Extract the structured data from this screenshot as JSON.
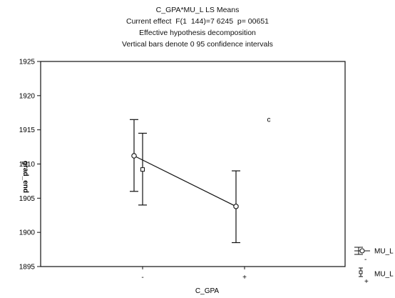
{
  "chart_data": {
    "type": "line",
    "title_lines": [
      "C_GPA*MU_L LS Means",
      "Current effect  F(1  144)=7 6245  p= 00651",
      "Effective hypothesis decomposition",
      "Vertical bars denote 0 95 confidence intervals"
    ],
    "xlabel": "C_GPA",
    "ylabel": "grad_end",
    "categories": [
      "-",
      "+"
    ],
    "ylim": [
      1895,
      1925
    ],
    "yticks": [
      1895,
      1900,
      1905,
      1910,
      1915,
      1920,
      1925
    ],
    "series": [
      {
        "name": "MU_L\n-",
        "marker": "circle",
        "values": [
          1911.2,
          1903.8
        ],
        "ci_low": [
          1906.0,
          1898.5
        ],
        "ci_high": [
          1916.5,
          1909.0
        ]
      },
      {
        "name": "MU_L\n+",
        "marker": "square",
        "values": [
          1909.2,
          null
        ],
        "ci_low": [
          1904.0,
          null
        ],
        "ci_high": [
          1914.5,
          null
        ]
      }
    ],
    "annotations": [
      {
        "text": "c",
        "x": "+",
        "y": 1916.5
      }
    ],
    "legend_position": "bottom-right",
    "grid": false
  }
}
